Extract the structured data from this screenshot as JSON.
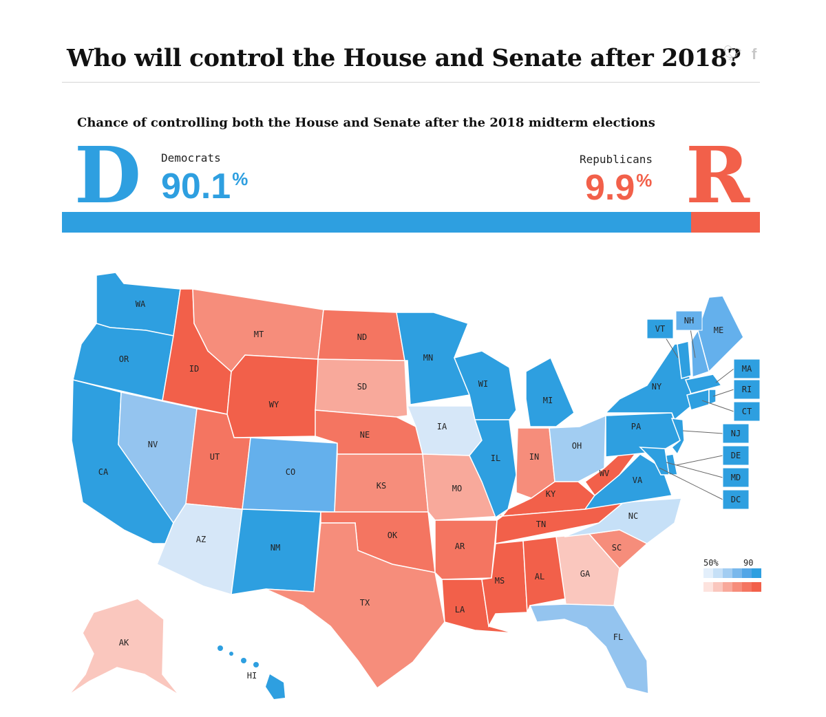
{
  "header": {
    "title": "Who will control the House and Senate after 2018?",
    "twitter_icon": "twitter-icon",
    "facebook_icon": "facebook-icon"
  },
  "summary": {
    "subtitle": "Chance of controlling both the House and Senate after the 2018 midterm elections",
    "democrats": {
      "letter": "D",
      "label": "Democrats",
      "value": "90.1",
      "unit": "%",
      "color": "#2e9fe0",
      "share": 0.901
    },
    "republicans": {
      "letter": "R",
      "label": "Republicans",
      "value": "9.9",
      "unit": "%",
      "color": "#f2604a",
      "share": 0.099
    }
  },
  "map": {
    "states": [
      "WA",
      "OR",
      "CA",
      "ID",
      "NV",
      "MT",
      "WY",
      "UT",
      "AZ",
      "CO",
      "NM",
      "ND",
      "SD",
      "NE",
      "KS",
      "OK",
      "TX",
      "MN",
      "IA",
      "MO",
      "AR",
      "LA",
      "WI",
      "IL",
      "MI",
      "IN",
      "OH",
      "KY",
      "TN",
      "MS",
      "AL",
      "GA",
      "FL",
      "SC",
      "NC",
      "VA",
      "WV",
      "PA",
      "NY",
      "ME",
      "AK",
      "HI"
    ],
    "box_states": [
      "VT",
      "NH",
      "MA",
      "RI",
      "CT",
      "NJ",
      "DE",
      "MD",
      "DC"
    ]
  },
  "legend": {
    "low": "50%",
    "high": "90",
    "blue_scale": [
      "#e3effb",
      "#c6e0f7",
      "#a2cdf2",
      "#79b8ec",
      "#52a6e7",
      "#2e9fe0"
    ],
    "red_scale": [
      "#fde3de",
      "#fac7be",
      "#f8a99b",
      "#f68d7b",
      "#f47561",
      "#f2604a"
    ]
  }
}
